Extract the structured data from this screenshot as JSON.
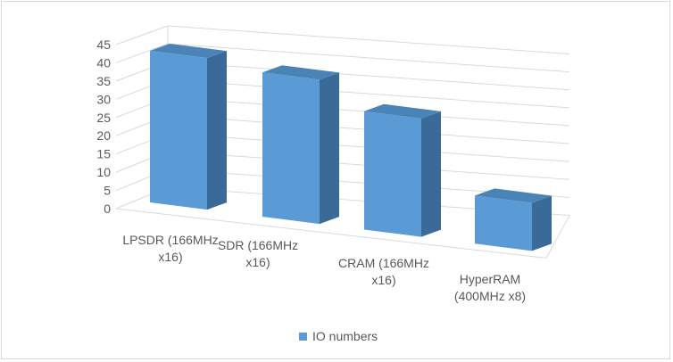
{
  "chart_data": {
    "type": "bar",
    "categories": [
      [
        "LPSDR (166MHz",
        "x16)"
      ],
      [
        "SDR (166MHz",
        "x16)"
      ],
      [
        "CRAM (166MHz",
        "x16)"
      ],
      [
        "HyperRAM",
        "(400MHz x8)"
      ]
    ],
    "series": [
      {
        "name": "IO numbers",
        "values": [
          41,
          39,
          32,
          13
        ]
      }
    ],
    "y_ticks": [
      "0",
      "5",
      "10",
      "15",
      "20",
      "25",
      "30",
      "35",
      "40",
      "45"
    ],
    "ylim": [
      0,
      45
    ],
    "grid": true,
    "legend": "bottom",
    "colors": {
      "bar_front": "#5b9bd5",
      "bar_side": "#3a6b98",
      "bar_top": "#4a83b6",
      "grid": "#d9d9d9"
    }
  },
  "legend": {
    "label": "IO numbers"
  }
}
